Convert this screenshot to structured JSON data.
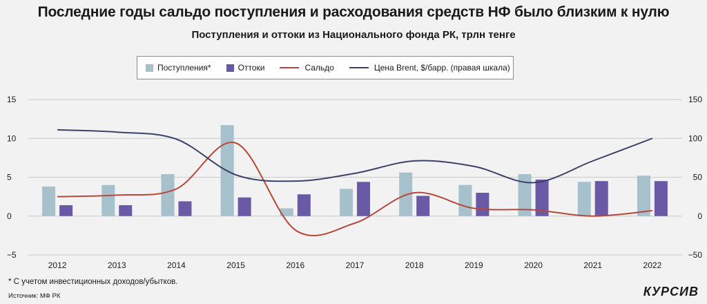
{
  "header": {
    "title": "Последние годы сальдо поступления и расходования средств НФ было близким к нулю",
    "subtitle": "Поступления и оттоки из Национального фонда РК, трлн тенге"
  },
  "legend": {
    "inflows": "Поступления*",
    "outflows": "Оттоки",
    "balance": "Сальдо",
    "brent": "Цена Brent, $/барр. (правая шкала)"
  },
  "colors": {
    "inflows": "#a6c0cc",
    "outflows": "#6a5aa6",
    "balance": "#b5483a",
    "brent": "#3b4167"
  },
  "chart_data": {
    "type": "bar",
    "title": "Поступления и оттоки из Национального фонда РК, трлн тенге",
    "categories": [
      "2012",
      "2013",
      "2014",
      "2015",
      "2016",
      "2017",
      "2018",
      "2019",
      "2020",
      "2021",
      "2022"
    ],
    "series": [
      {
        "name": "Поступления*",
        "type": "bar",
        "axis": "left",
        "values": [
          3.8,
          4.0,
          5.4,
          11.7,
          1.0,
          3.5,
          5.6,
          4.0,
          5.4,
          4.4,
          5.2
        ]
      },
      {
        "name": "Оттоки",
        "type": "bar",
        "axis": "left",
        "values": [
          1.4,
          1.4,
          1.9,
          2.4,
          2.8,
          4.4,
          2.6,
          3.0,
          4.7,
          4.5,
          4.5
        ]
      },
      {
        "name": "Сальдо",
        "type": "line",
        "axis": "left",
        "values": [
          2.5,
          2.7,
          3.5,
          9.4,
          -1.8,
          -0.9,
          3.0,
          1.0,
          0.8,
          0.0,
          0.7
        ]
      },
      {
        "name": "Цена Brent, $/барр. (правая шкала)",
        "type": "line",
        "axis": "right",
        "values": [
          111,
          108,
          99,
          53,
          45,
          55,
          71,
          64,
          43,
          71,
          100
        ]
      }
    ],
    "ylim": [
      -5,
      15
    ],
    "yticks": [
      -5,
      0,
      5,
      10,
      15
    ],
    "ytick_labels": [
      "−5",
      "0",
      "5",
      "10",
      "15"
    ],
    "y2lim": [
      -50,
      150
    ],
    "y2ticks": [
      -50,
      0,
      50,
      100,
      150
    ],
    "y2tick_labels": [
      "−50",
      "0",
      "50",
      "100",
      "150"
    ],
    "xlabel": "",
    "ylabel": "",
    "grid": true
  },
  "footnote": "* С учетом инвестиционных доходов/убытков.",
  "source": "Источник: МФ РК",
  "brand": "КУРСИВ"
}
